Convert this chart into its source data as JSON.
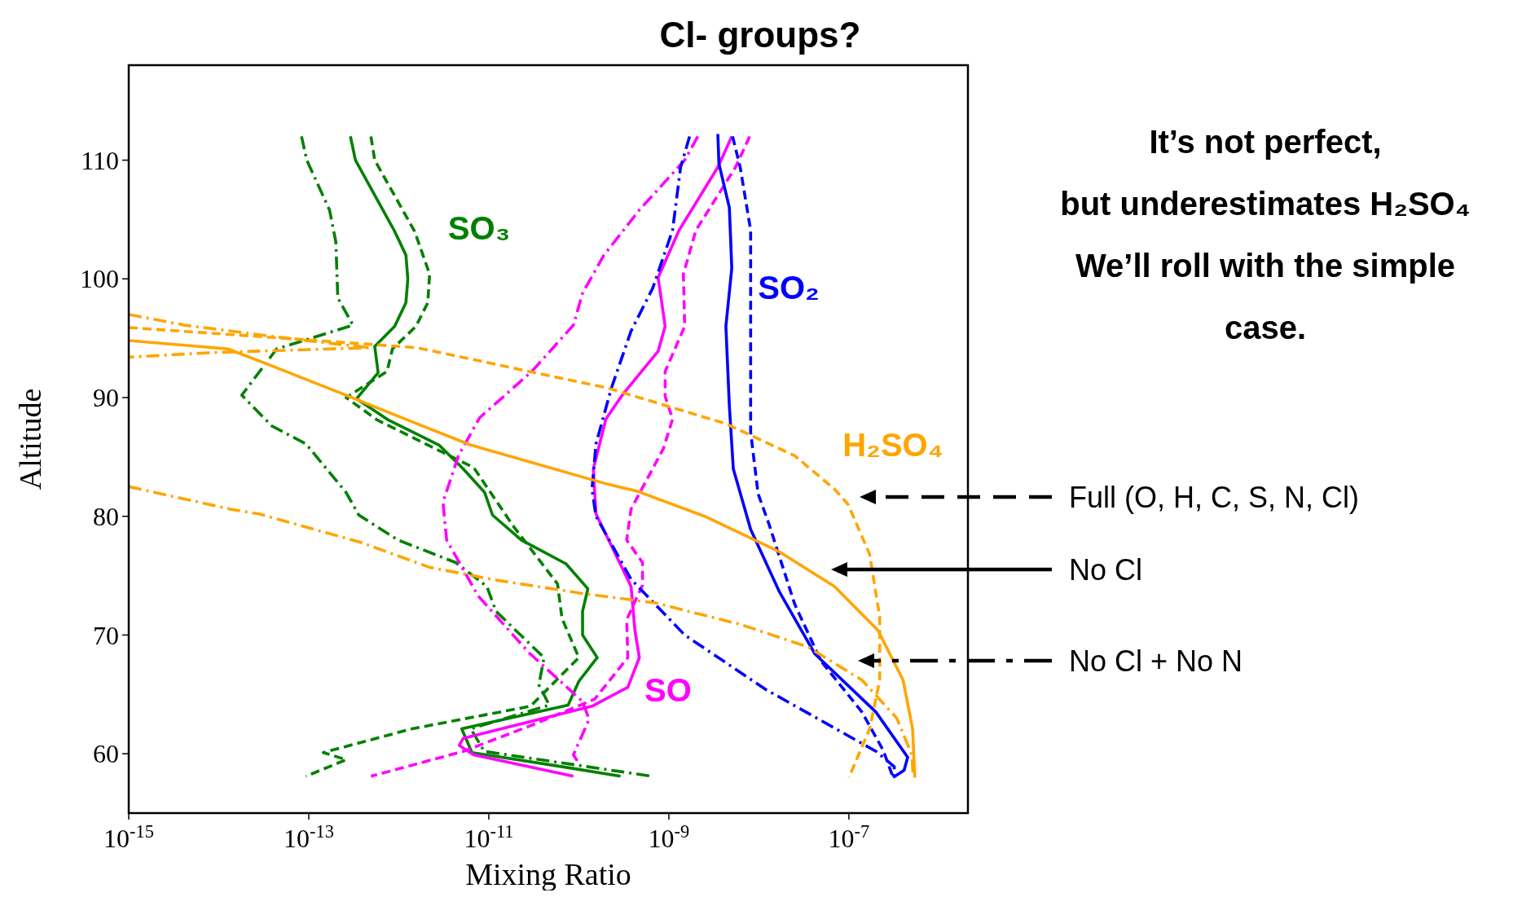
{
  "chart_data": {
    "type": "line",
    "title": "Cl- groups?",
    "xlabel": "Mixing Ratio",
    "ylabel": "Altitude",
    "log": "x",
    "xlim": [
      1e-15,
      2.1e-06
    ],
    "ylim": [
      55,
      118
    ],
    "xticks": [
      {
        "value": 1e-15,
        "label": "10$^{-15}$"
      },
      {
        "value": 1e-13,
        "label": "10$^{-13}$"
      },
      {
        "value": 1e-11,
        "label": "10$^{-11}$"
      },
      {
        "value": 1e-09,
        "label": "10$^{-9}$"
      },
      {
        "value": 1e-07,
        "label": "10$^{-7}$"
      }
    ],
    "yticks": [
      60,
      70,
      80,
      90,
      100,
      110
    ],
    "series": [
      {
        "name": "SO₃",
        "color": "#008000",
        "line_style": "dashed",
        "x": [
          4.9e-13,
          5.4e-13,
          1.5e-12,
          2.2e-12,
          2.1e-12,
          1.55e-12,
          8.5e-13,
          7.4e-13,
          2.6e-13,
          5.8e-13,
          6.8e-12,
          1.9e-11,
          5.8e-11,
          6.5e-11,
          1e-10,
          2.9e-11,
          1.4e-12,
          1.45e-13,
          2.6e-13,
          9.3e-14
        ],
        "values": [
          112,
          110,
          104,
          100.4,
          98,
          96,
          94.1,
          92.2,
          90,
          88.1,
          84.1,
          79.1,
          74.3,
          71.4,
          68.1,
          64,
          62.1,
          60.1,
          59.5,
          58.1
        ]
      },
      {
        "color": "#008000",
        "line_style": "solid",
        "x": [
          2.9e-13,
          3.3e-13,
          9e-13,
          1.2e-12,
          1.26e-12,
          1.2e-12,
          9e-13,
          5.4e-13,
          5.9e-13,
          3.4e-13,
          7.7e-13,
          2.8e-12,
          5.2e-12,
          9e-12,
          1.1e-11,
          2.3e-11,
          7.2e-11,
          1.26e-10,
          1.1e-10,
          1.1e-10,
          1.6e-10,
          1e-10,
          7.6e-11,
          5e-12,
          6.5e-12,
          8e-11,
          2.9e-10
        ],
        "values": [
          112,
          110,
          104,
          102,
          100,
          98,
          96,
          94.3,
          92.1,
          89.9,
          88.1,
          86,
          84,
          82,
          80.1,
          78,
          76,
          73.9,
          72,
          70,
          68.1,
          66.1,
          64.1,
          62.1,
          60.1,
          58.8,
          58.1
        ]
      },
      {
        "color": "#008000",
        "line_style": "dashdot",
        "x": [
          8.3e-14,
          9.5e-14,
          1.7e-13,
          2e-13,
          2.1e-13,
          3.1e-13,
          4.4e-14,
          1.8e-14,
          3.9e-14,
          9.3e-14,
          2.6e-13,
          3.6e-13,
          9.8e-13,
          4.3e-12,
          9.5e-12,
          1.2e-11,
          4.1e-11,
          3.6e-11,
          4.7e-11,
          6.3e-12,
          8.9e-12,
          6.5e-10
        ],
        "values": [
          112,
          110,
          105.8,
          103.1,
          98.4,
          96.1,
          94.1,
          90.2,
          87.6,
          86.1,
          82,
          80.1,
          78,
          76.1,
          74.1,
          72,
          68.1,
          65.8,
          64.1,
          62.1,
          60.2,
          58.1
        ]
      },
      {
        "name": "SO",
        "color": "#ff00ff",
        "line_style": "dashed",
        "x": [
          7.9e-09,
          5.5e-09,
          2e-09,
          1.45e-09,
          1.5e-09,
          9.1e-10,
          9.1e-10,
          1.1e-09,
          8.7e-10,
          3.8e-10,
          3.4e-10,
          5.1e-10,
          5.1e-10,
          3.4e-10,
          3.5e-10,
          1.5e-10,
          3e-11,
          5.2e-12,
          4.9e-13
        ],
        "values": [
          112,
          109.4,
          104.1,
          100.4,
          96,
          92.2,
          90.1,
          88.2,
          85.7,
          80.6,
          78,
          76.1,
          74.2,
          71.3,
          68.1,
          64.6,
          62.4,
          60.2,
          58.1
        ]
      },
      {
        "color": "#ff00ff",
        "line_style": "solid",
        "x": [
          5e-09,
          3.5e-09,
          1.3e-09,
          7.6e-10,
          9.1e-10,
          7.6e-10,
          3.1e-10,
          2e-10,
          1.45e-10,
          1.55e-10,
          3.8e-10,
          4.2e-10,
          4.7e-10,
          3.5e-10,
          1.4e-10,
          5.2e-12,
          4.7e-12,
          6.8e-12,
          8.7e-11
        ],
        "values": [
          112,
          109.4,
          104.1,
          100.1,
          96,
          93.9,
          90.3,
          88.2,
          84,
          80.2,
          74.1,
          70.4,
          68.1,
          65.6,
          64,
          61.3,
          60.7,
          59.9,
          58.1
        ]
      },
      {
        "color": "#ff00ff",
        "line_style": "dashdot",
        "x": [
          2.1e-09,
          1.5e-09,
          4.7e-10,
          1.9e-10,
          1.1e-10,
          8.7e-11,
          3e-11,
          7.9e-12,
          4.6e-12,
          3.1e-12,
          3.2e-12,
          3.4e-12,
          7.6e-12,
          2.8e-11,
          1.1e-10,
          1.3e-10,
          8.7e-11,
          9.6e-11
        ],
        "values": [
          112,
          110,
          105.8,
          102,
          98.8,
          96.1,
          92.2,
          88.3,
          85.1,
          81.2,
          80,
          78,
          73.3,
          68.5,
          64.4,
          62.9,
          59.9,
          59.4
        ]
      },
      {
        "name": "SO₂",
        "color": "#0000ff",
        "line_style": "dashed",
        "x": [
          5.1e-09,
          6.2e-09,
          8.1e-09,
          8.1e-09,
          8.1e-09,
          9.8e-09,
          1.3e-08,
          2.5e-08,
          4.9e-08,
          1.4e-07,
          2.4e-07,
          3.1e-07
        ],
        "values": [
          112,
          109.4,
          104.1,
          96.6,
          87.1,
          81.9,
          79.3,
          72.6,
          67.8,
          63.5,
          60.3,
          58
        ]
      },
      {
        "color": "#0000ff",
        "line_style": "solid",
        "x": [
          3.5e-09,
          3.6e-09,
          4.7e-09,
          5e-09,
          4.3e-09,
          4.7e-09,
          5.2e-09,
          8.1e-09,
          1.7e-08,
          4.2e-08,
          2e-07,
          4.5e-07,
          4.1e-07,
          3.1e-07
        ],
        "values": [
          112.2,
          109.7,
          106,
          100.9,
          96,
          89.3,
          84,
          78.9,
          73.6,
          68.4,
          63.5,
          59.7,
          58.6,
          58
        ]
      },
      {
        "color": "#0000ff",
        "line_style": "dashdot",
        "x": [
          1.7e-09,
          1.35e-09,
          1.1e-09,
          6.6e-10,
          3.8e-10,
          2.3e-10,
          1.55e-10,
          1.4e-10,
          1.55e-10,
          3.8e-10,
          1.5e-09,
          1.2e-08,
          2e-07,
          3.2e-07,
          3.1e-07
        ],
        "values": [
          112,
          109.4,
          104.1,
          99.2,
          95.6,
          90.8,
          86.1,
          82.3,
          80,
          74.7,
          70,
          65.4,
          60.2,
          58.9,
          58
        ]
      },
      {
        "name": "H₂SO₄",
        "color": "#ffa500",
        "line_style": "dashed",
        "x": [
          1e-15,
          8.3e-14,
          1.6e-12,
          2.1e-10,
          4.3e-09,
          2.5e-08,
          6.9e-08,
          9.8e-08,
          1.7e-07,
          2.2e-07,
          2.2e-07,
          1.7e-07,
          1e-07
        ],
        "values": [
          95.9,
          94.9,
          94.2,
          90.8,
          87.8,
          85.1,
          82.3,
          81,
          76.8,
          71.5,
          66.2,
          62.1,
          58
        ]
      },
      {
        "color": "#ffa500",
        "line_style": "solid",
        "x": [
          1e-15,
          1.26e-14,
          3.8e-14,
          2.6e-13,
          1.26e-12,
          6.3e-12,
          2.1e-10,
          4.5e-10,
          2.5e-09,
          1.7e-08,
          6.9e-08,
          2.1e-07,
          4e-07,
          5.1e-07,
          5.4e-07
        ],
        "values": [
          94.8,
          94.1,
          92.7,
          90.2,
          88.1,
          86,
          82.7,
          82.1,
          80,
          77,
          74.1,
          70.4,
          66.2,
          62.1,
          58
        ]
      },
      {
        "color": "#ffa500",
        "line_style": "dashdot",
        "x": [
          1e-15,
          4.2e-15,
          7.2e-14,
          4.8e-13,
          9e-15,
          1e-15,
          null,
          1e-15,
          1.35e-14,
          2.8e-14,
          3.8e-13,
          2.2e-12,
          1.26e-11,
          1.1e-10,
          7.1e-10,
          6.2e-09,
          3.5e-08,
          1.4e-07,
          3.4e-07,
          5e-07,
          5.2e-07
        ],
        "values": [
          97,
          96.1,
          94.9,
          94.2,
          93.8,
          93.4,
          null,
          82.5,
          80.6,
          80.2,
          77.8,
          75.7,
          74.6,
          73.5,
          72.7,
          70.9,
          69,
          66.2,
          63,
          59.9,
          58
        ]
      }
    ],
    "annotations": [
      "Full (O, H, C, S, N, Cl)",
      "No Cl",
      "No Cl + No N",
      "It’s not perfect,",
      "but underestimates H₂SO₄",
      "We’ll roll with the simple",
      "case."
    ]
  }
}
